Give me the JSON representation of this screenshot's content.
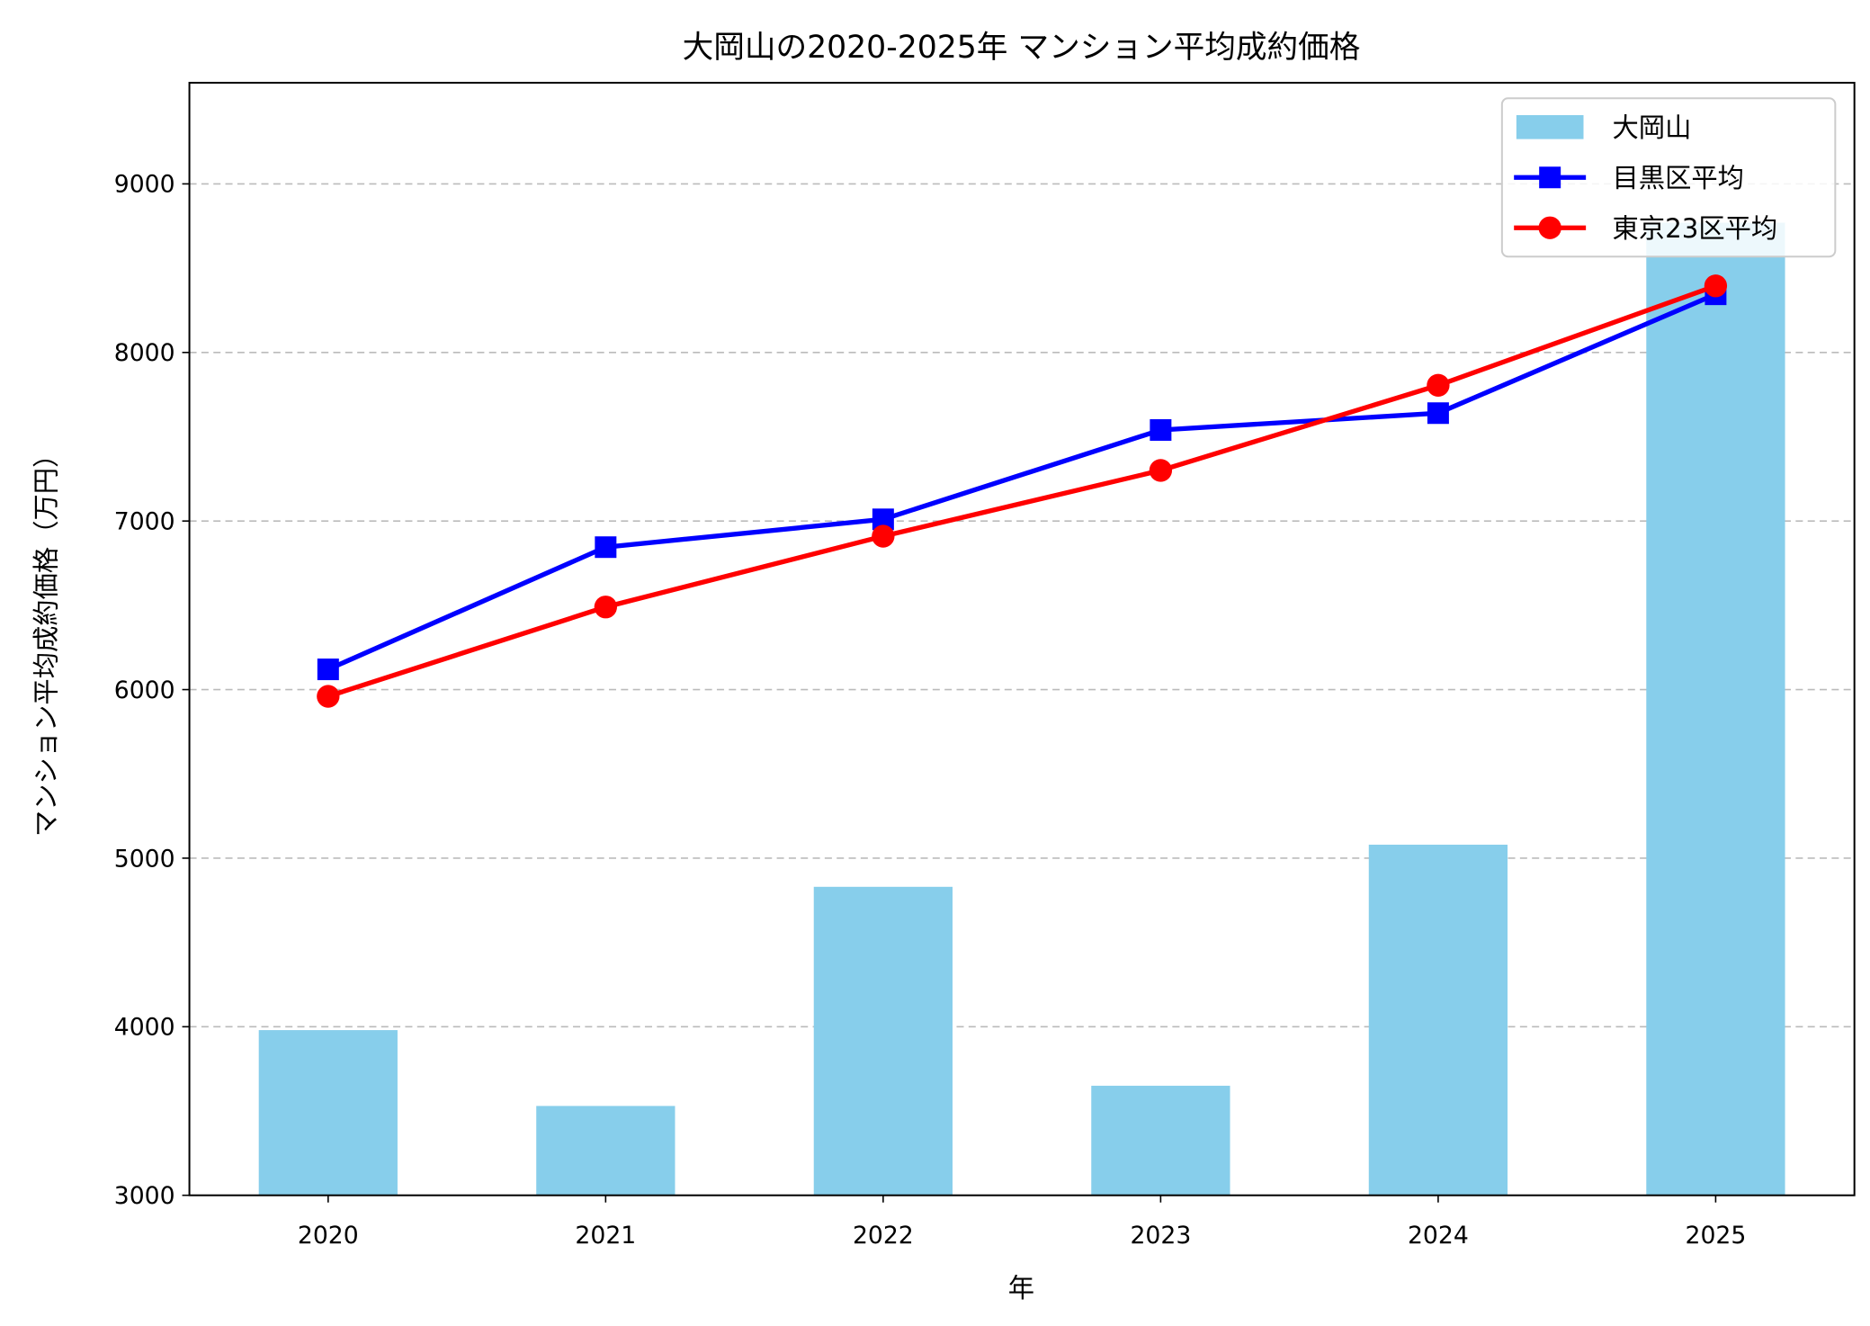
{
  "chart_data": {
    "type": "bar+line",
    "title": "大岡山の2020-2025年 マンション平均成約価格",
    "xlabel": "年",
    "ylabel": "マンション平均成約価格（万円）",
    "categories": [
      "2020",
      "2021",
      "2022",
      "2023",
      "2024",
      "2025"
    ],
    "ylim": [
      3000,
      9600
    ],
    "yticks": [
      3000,
      4000,
      5000,
      6000,
      7000,
      8000,
      9000
    ],
    "grid": "y-dashed",
    "legend_position": "top-right",
    "series": [
      {
        "name": "大岡山",
        "kind": "bar",
        "color": "#87CEEB",
        "values": [
          3980,
          3530,
          4830,
          3650,
          5080,
          8770
        ]
      },
      {
        "name": "目黒区平均",
        "kind": "line",
        "marker": "square",
        "color": "#0000FF",
        "values": [
          6120,
          6845,
          7010,
          7540,
          7640,
          8345
        ]
      },
      {
        "name": "東京23区平均",
        "kind": "line",
        "marker": "circle",
        "color": "#FF0000",
        "values": [
          5960,
          6490,
          6910,
          7300,
          7805,
          8395
        ]
      }
    ]
  }
}
